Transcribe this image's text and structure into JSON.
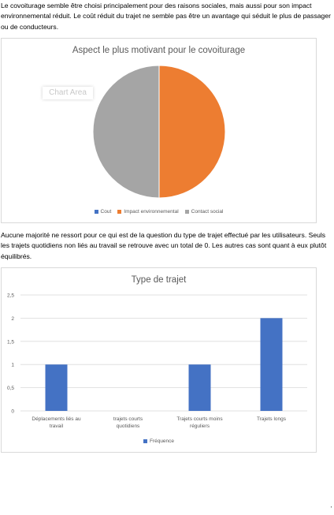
{
  "paragraphs": {
    "p1": "Le covoiturage semble être choisi principalement pour des raisons sociales, mais aussi pour son impact environnemental réduit. Le coût réduit du trajet ne semble pas être un avantage qui séduit le plus de passager ou de conducteurs.",
    "p2": "Aucune majorité ne ressort pour ce qui est de la question du type de trajet effectué par les utilisateurs. Seuls les trajets quotidiens non liés au travail se retrouve avec un total de 0. Les autres cas sont quant à eux plutôt équilibrés."
  },
  "pie_chart": {
    "chart_area_label": "Chart Area"
  },
  "chart_data": [
    {
      "type": "pie",
      "title": "Aspect le plus motivant pour le covoiturage",
      "categories": [
        "Cout",
        "Impact environnemental",
        "Contact social"
      ],
      "values": [
        0,
        1,
        1
      ],
      "colors": [
        "#4472c4",
        "#ed7d31",
        "#a5a5a5"
      ],
      "legend": "bottom"
    },
    {
      "type": "bar",
      "title": "Type de trajet",
      "categories": [
        "Déplacements liés au travail",
        "trajets courts quotidiens",
        "Trajets courts moins réguliers",
        "Trajets longs"
      ],
      "series": [
        {
          "name": "Fréquence",
          "values": [
            1,
            0,
            1,
            2
          ],
          "color": "#4472c4"
        }
      ],
      "ylim": [
        0,
        2.5
      ],
      "yticks": [
        "0",
        "0,5",
        "1",
        "1,5",
        "2",
        "2,5"
      ],
      "grid": true,
      "legend": "bottom"
    }
  ],
  "page_mark": "'"
}
